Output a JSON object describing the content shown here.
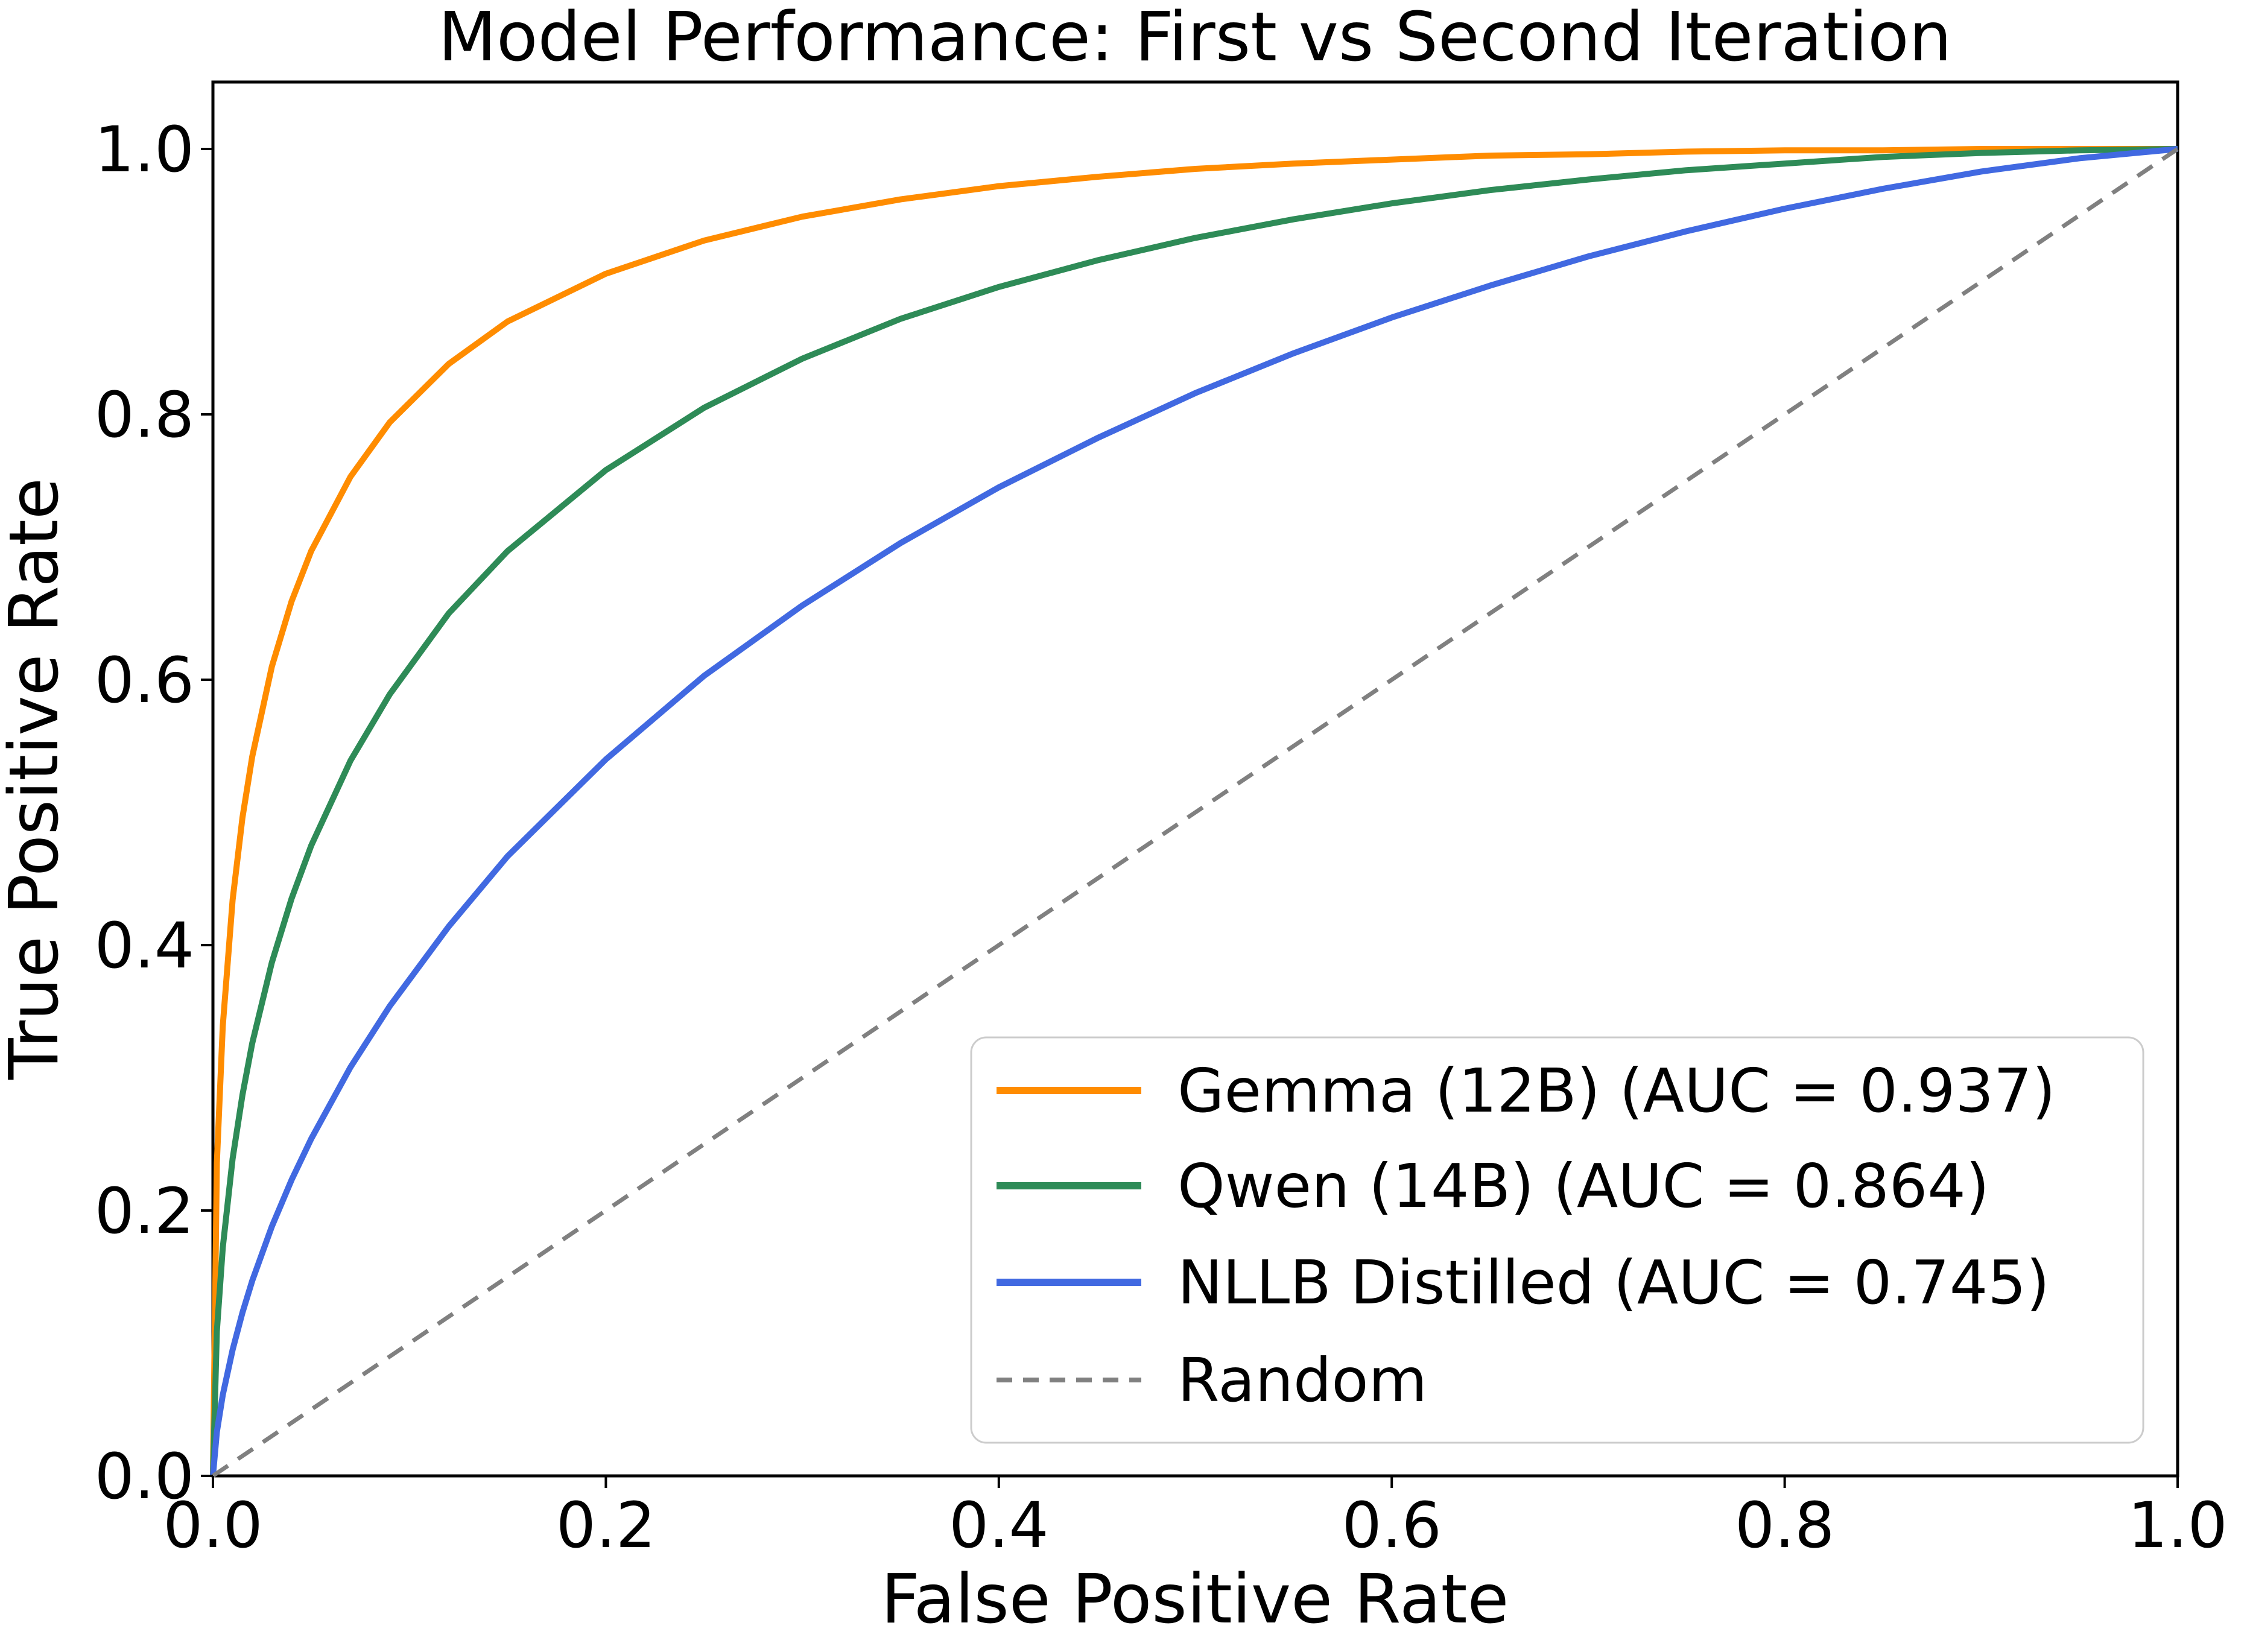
{
  "figure": {
    "title": "Model Performance: First vs Second Iteration",
    "xlabel": "False Positive Rate",
    "ylabel": "True Positive Rate"
  },
  "axes": {
    "xtick_labels": [
      "0.0",
      "0.2",
      "0.4",
      "0.6",
      "0.8",
      "1.0"
    ],
    "ytick_labels": [
      "0.0",
      "0.2",
      "0.4",
      "0.6",
      "0.8",
      "1.0"
    ],
    "xtick_values": [
      0,
      0.2,
      0.4,
      0.6,
      0.8,
      1.0
    ],
    "ytick_values": [
      0,
      0.2,
      0.4,
      0.6,
      0.8,
      1.0
    ],
    "xlim": [
      0,
      1.0
    ],
    "ylim": [
      0,
      1.05
    ],
    "grid": false
  },
  "legend": {
    "position": "lower right"
  },
  "chart_data": {
    "type": "line",
    "title": "Model Performance: First vs Second Iteration",
    "xlabel": "False Positive Rate",
    "ylabel": "True Positive Rate",
    "xlim": [
      0,
      1.0
    ],
    "ylim": [
      0,
      1.05
    ],
    "grid": false,
    "legend_position": "lower right",
    "series": [
      {
        "key": "gemma",
        "name": "Gemma (12B) (AUC = 0.937)",
        "auc": 0.937,
        "color": "#FF8C00",
        "style": "solid",
        "x": [
          0,
          0.002,
          0.005,
          0.01,
          0.015,
          0.02,
          0.03,
          0.04,
          0.05,
          0.07,
          0.09,
          0.12,
          0.15,
          0.2,
          0.25,
          0.3,
          0.35,
          0.4,
          0.45,
          0.5,
          0.55,
          0.6,
          0.65,
          0.7,
          0.75,
          0.8,
          0.85,
          0.9,
          0.95,
          1.0
        ],
        "y": [
          0,
          0.236,
          0.339,
          0.434,
          0.496,
          0.542,
          0.61,
          0.659,
          0.697,
          0.753,
          0.794,
          0.838,
          0.87,
          0.906,
          0.931,
          0.949,
          0.962,
          0.972,
          0.979,
          0.985,
          0.989,
          0.992,
          0.995,
          0.996,
          0.998,
          0.999,
          0.999,
          1.0,
          1.0,
          1.0
        ]
      },
      {
        "key": "qwen",
        "name": "Qwen (14B) (AUC = 0.864)",
        "auc": 0.864,
        "color": "#2E8B57",
        "style": "solid",
        "x": [
          0,
          0.002,
          0.005,
          0.01,
          0.015,
          0.02,
          0.03,
          0.04,
          0.05,
          0.07,
          0.09,
          0.12,
          0.15,
          0.2,
          0.25,
          0.3,
          0.35,
          0.4,
          0.45,
          0.5,
          0.55,
          0.6,
          0.65,
          0.7,
          0.75,
          0.8,
          0.85,
          0.9,
          0.95,
          1.0
        ],
        "y": [
          0,
          0.109,
          0.172,
          0.239,
          0.287,
          0.326,
          0.387,
          0.435,
          0.475,
          0.539,
          0.589,
          0.65,
          0.697,
          0.758,
          0.805,
          0.842,
          0.872,
          0.896,
          0.916,
          0.933,
          0.947,
          0.959,
          0.969,
          0.977,
          0.984,
          0.989,
          0.994,
          0.997,
          0.999,
          1.0
        ]
      },
      {
        "key": "nllb",
        "name": "NLLB Distilled (AUC = 0.745)",
        "auc": 0.745,
        "color": "#4169E1",
        "style": "solid",
        "x": [
          0,
          0.002,
          0.005,
          0.01,
          0.015,
          0.02,
          0.03,
          0.04,
          0.05,
          0.07,
          0.09,
          0.12,
          0.15,
          0.2,
          0.25,
          0.3,
          0.35,
          0.4,
          0.45,
          0.5,
          0.55,
          0.6,
          0.65,
          0.7,
          0.75,
          0.8,
          0.85,
          0.9,
          0.95,
          1.0
        ],
        "y": [
          0,
          0.033,
          0.061,
          0.095,
          0.123,
          0.147,
          0.188,
          0.223,
          0.254,
          0.308,
          0.354,
          0.414,
          0.467,
          0.54,
          0.603,
          0.656,
          0.703,
          0.745,
          0.782,
          0.816,
          0.846,
          0.873,
          0.897,
          0.919,
          0.938,
          0.955,
          0.97,
          0.983,
          0.993,
          1.0
        ]
      },
      {
        "key": "random",
        "name": "Random",
        "color": "#808080",
        "style": "dashed",
        "x": [
          0,
          1.0
        ],
        "y": [
          0,
          1.0
        ]
      }
    ]
  }
}
